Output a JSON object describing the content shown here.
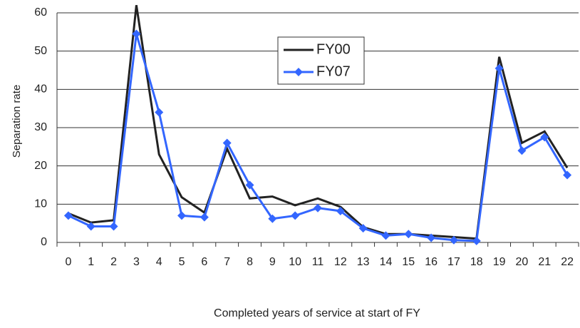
{
  "chart_data": {
    "type": "line",
    "y_label": "Separation rate",
    "x_label": "Completed years of service at start of FY",
    "categories": [
      "0",
      "1",
      "2",
      "3",
      "4",
      "5",
      "6",
      "7",
      "8",
      "9",
      "10",
      "11",
      "12",
      "13",
      "14",
      "15",
      "16",
      "17",
      "18",
      "19",
      "20",
      "21",
      "22"
    ],
    "series": [
      {
        "name": "FY00",
        "color": "#222222",
        "marker": "none",
        "values": [
          7.6,
          5.2,
          5.8,
          62,
          23,
          11.8,
          7.8,
          24.5,
          11.5,
          12,
          9.7,
          11.5,
          9.3,
          4,
          2.2,
          2.2,
          1.8,
          1.4,
          1,
          48.5,
          26,
          29,
          19.5
        ]
      },
      {
        "name": "FY07",
        "color": "#3366ff",
        "marker": "diamond",
        "values": [
          7,
          4.2,
          4.2,
          54.5,
          34,
          7,
          6.6,
          26,
          15,
          6.2,
          7,
          9,
          8.2,
          3.7,
          1.8,
          2.2,
          1.2,
          0.6,
          0.4,
          45.5,
          24,
          27.5,
          17.6
        ]
      }
    ],
    "ylim": [
      0,
      60
    ],
    "yticks": [
      0,
      10,
      20,
      30,
      40,
      50,
      60
    ],
    "grid": true
  }
}
